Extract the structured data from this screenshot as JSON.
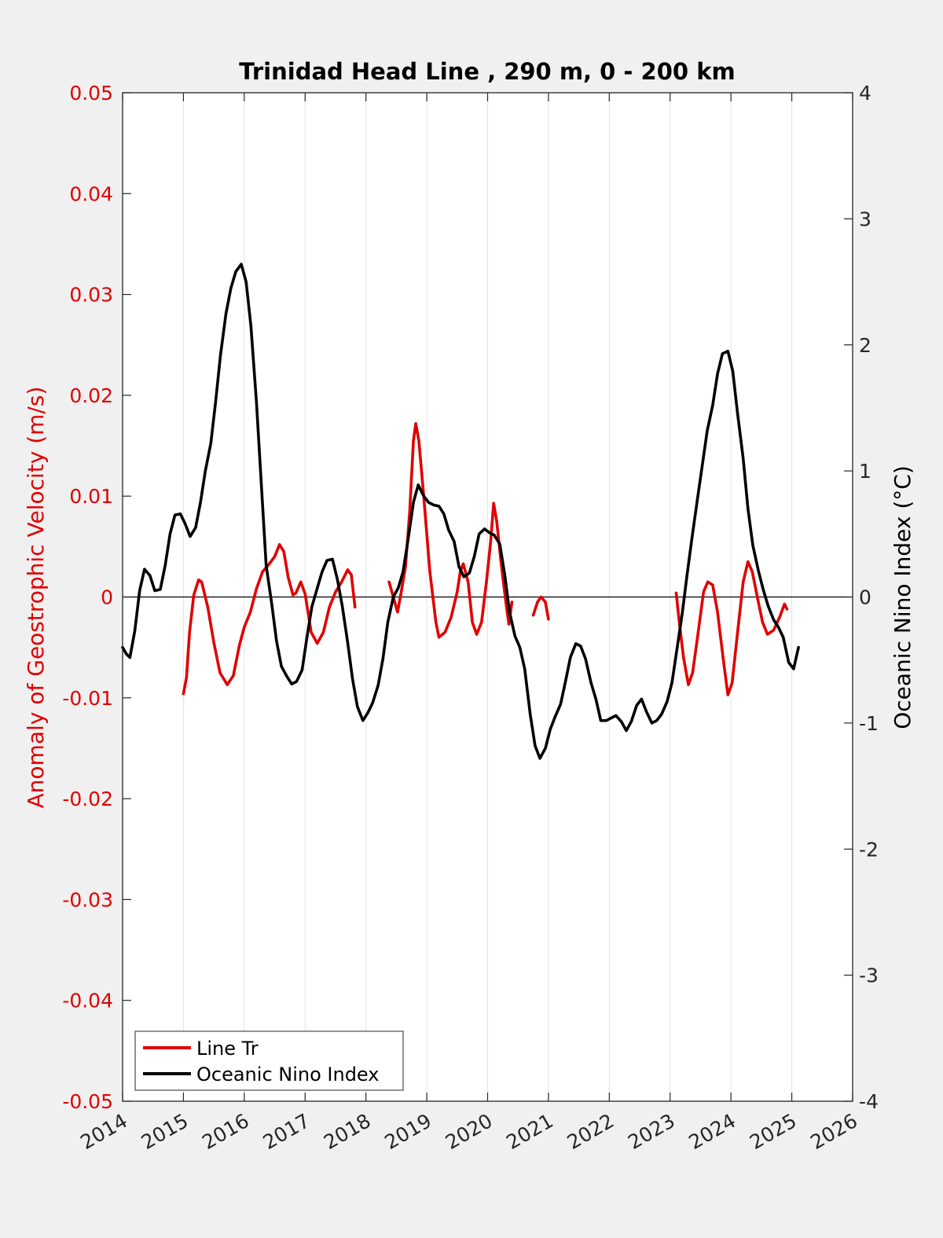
{
  "chart_data": {
    "type": "line",
    "title": "Trinidad Head Line , 290 m, 0 - 200 km",
    "ylabel_left": "Anomaly of Geostrophic Velocity (m/s)",
    "ylabel_right": "Oceanic Nino Index (°C)",
    "xlim": [
      2014,
      2026
    ],
    "ylim_left": [
      -0.05,
      0.05
    ],
    "ylim_right": [
      -4,
      4
    ],
    "x_ticks": [
      "2014",
      "2015",
      "2016",
      "2017",
      "2018",
      "2019",
      "2020",
      "2021",
      "2022",
      "2023",
      "2024",
      "2025",
      "2026"
    ],
    "y_ticks_left": [
      "0.05",
      "0.04",
      "0.03",
      "0.02",
      "0.01",
      "0",
      "-0.01",
      "-0.02",
      "-0.03",
      "-0.04",
      "-0.05"
    ],
    "y_ticks_right": [
      "4",
      "3",
      "2",
      "1",
      "0",
      "-1",
      "-2",
      "-3",
      "-4"
    ],
    "grid": "vertical",
    "legend_position": "bottom-left",
    "colors": {
      "left_axis": "#e00000",
      "line_tr": "#e00000",
      "oni": "#000000"
    },
    "series": [
      {
        "name": "Line Tr",
        "axis": "left",
        "segments": [
          [
            [
              2015.0,
              -0.0096
            ],
            [
              2015.05,
              -0.008
            ],
            [
              2015.1,
              -0.0035
            ],
            [
              2015.17,
              0.0002
            ],
            [
              2015.25,
              0.0017
            ],
            [
              2015.3,
              0.0015
            ],
            [
              2015.4,
              -0.001
            ],
            [
              2015.5,
              -0.0045
            ],
            [
              2015.6,
              -0.0075
            ],
            [
              2015.72,
              -0.0087
            ],
            [
              2015.82,
              -0.0078
            ],
            [
              2015.92,
              -0.0048
            ],
            [
              2016.0,
              -0.003
            ],
            [
              2016.1,
              -0.0015
            ],
            [
              2016.2,
              0.0008
            ],
            [
              2016.3,
              0.0025
            ],
            [
              2016.4,
              0.0032
            ],
            [
              2016.5,
              0.004
            ],
            [
              2016.58,
              0.0052
            ],
            [
              2016.65,
              0.0045
            ],
            [
              2016.72,
              0.002
            ],
            [
              2016.8,
              0.0002
            ],
            [
              2016.85,
              0.0004
            ],
            [
              2016.93,
              0.0015
            ],
            [
              2017.0,
              0.0003
            ],
            [
              2017.1,
              -0.0035
            ],
            [
              2017.2,
              -0.0046
            ],
            [
              2017.3,
              -0.0035
            ],
            [
              2017.4,
              -0.001
            ],
            [
              2017.5,
              0.0005
            ],
            [
              2017.6,
              0.0015
            ],
            [
              2017.7,
              0.0027
            ],
            [
              2017.76,
              0.0022
            ],
            [
              2017.82,
              -0.001
            ]
          ],
          [
            [
              2018.38,
              0.0015
            ],
            [
              2018.45,
              0.0
            ],
            [
              2018.52,
              -0.0015
            ],
            [
              2018.58,
              0.0005
            ],
            [
              2018.65,
              0.003
            ],
            [
              2018.72,
              0.0085
            ],
            [
              2018.78,
              0.0155
            ],
            [
              2018.82,
              0.0172
            ],
            [
              2018.87,
              0.0155
            ],
            [
              2018.95,
              0.01
            ],
            [
              2019.05,
              0.0025
            ],
            [
              2019.15,
              -0.0025
            ],
            [
              2019.2,
              -0.004
            ],
            [
              2019.3,
              -0.0035
            ],
            [
              2019.4,
              -0.002
            ],
            [
              2019.5,
              0.0005
            ],
            [
              2019.55,
              0.0025
            ],
            [
              2019.6,
              0.0033
            ],
            [
              2019.68,
              0.0015
            ],
            [
              2019.75,
              -0.0025
            ],
            [
              2019.82,
              -0.0037
            ],
            [
              2019.9,
              -0.0025
            ],
            [
              2019.98,
              0.0015
            ],
            [
              2020.05,
              0.0055
            ],
            [
              2020.1,
              0.0093
            ],
            [
              2020.15,
              0.0075
            ],
            [
              2020.22,
              0.0035
            ],
            [
              2020.3,
              -0.0005
            ],
            [
              2020.35,
              -0.0027
            ],
            [
              2020.4,
              -0.0005
            ]
          ],
          [
            [
              2020.75,
              -0.0018
            ],
            [
              2020.82,
              -0.0005
            ],
            [
              2020.88,
              0.0
            ],
            [
              2020.95,
              -0.0005
            ],
            [
              2021.0,
              -0.0022
            ]
          ],
          [
            [
              2023.1,
              0.0004
            ],
            [
              2023.15,
              -0.0025
            ],
            [
              2023.22,
              -0.006
            ],
            [
              2023.3,
              -0.0087
            ],
            [
              2023.37,
              -0.0075
            ],
            [
              2023.45,
              -0.004
            ],
            [
              2023.55,
              0.0005
            ],
            [
              2023.62,
              0.0015
            ],
            [
              2023.7,
              0.0012
            ],
            [
              2023.78,
              -0.0015
            ],
            [
              2023.88,
              -0.0065
            ],
            [
              2023.95,
              -0.0097
            ],
            [
              2024.02,
              -0.0085
            ],
            [
              2024.1,
              -0.004
            ],
            [
              2024.2,
              0.0015
            ],
            [
              2024.28,
              0.0035
            ],
            [
              2024.35,
              0.0025
            ],
            [
              2024.45,
              -0.0005
            ],
            [
              2024.52,
              -0.0025
            ],
            [
              2024.6,
              -0.0037
            ],
            [
              2024.7,
              -0.0033
            ],
            [
              2024.8,
              -0.002
            ],
            [
              2024.88,
              -0.0007
            ],
            [
              2024.92,
              -0.0012
            ]
          ]
        ]
      },
      {
        "name": "Oceanic Nino Index",
        "axis": "right",
        "segments": [
          [
            [
              2014.0,
              -0.4
            ],
            [
              2014.06,
              -0.45
            ],
            [
              2014.12,
              -0.48
            ],
            [
              2014.2,
              -0.27
            ],
            [
              2014.28,
              0.05
            ],
            [
              2014.36,
              0.22
            ],
            [
              2014.45,
              0.17
            ],
            [
              2014.53,
              0.05
            ],
            [
              2014.62,
              0.06
            ],
            [
              2014.7,
              0.25
            ],
            [
              2014.78,
              0.5
            ],
            [
              2014.86,
              0.65
            ],
            [
              2014.95,
              0.66
            ],
            [
              2015.03,
              0.58
            ],
            [
              2015.11,
              0.48
            ],
            [
              2015.2,
              0.55
            ],
            [
              2015.28,
              0.75
            ],
            [
              2015.36,
              1.0
            ],
            [
              2015.45,
              1.22
            ],
            [
              2015.53,
              1.55
            ],
            [
              2015.61,
              1.92
            ],
            [
              2015.7,
              2.25
            ],
            [
              2015.78,
              2.45
            ],
            [
              2015.86,
              2.58
            ],
            [
              2015.95,
              2.64
            ],
            [
              2016.03,
              2.5
            ],
            [
              2016.11,
              2.15
            ],
            [
              2016.2,
              1.55
            ],
            [
              2016.28,
              0.9
            ],
            [
              2016.36,
              0.25
            ],
            [
              2016.45,
              -0.05
            ],
            [
              2016.53,
              -0.35
            ],
            [
              2016.61,
              -0.55
            ],
            [
              2016.7,
              -0.63
            ],
            [
              2016.78,
              -0.69
            ],
            [
              2016.86,
              -0.67
            ],
            [
              2016.95,
              -0.58
            ],
            [
              2017.03,
              -0.32
            ],
            [
              2017.11,
              -0.08
            ],
            [
              2017.2,
              0.07
            ],
            [
              2017.28,
              0.2
            ],
            [
              2017.36,
              0.29
            ],
            [
              2017.45,
              0.3
            ],
            [
              2017.53,
              0.14
            ],
            [
              2017.61,
              -0.07
            ],
            [
              2017.7,
              -0.36
            ],
            [
              2017.78,
              -0.65
            ],
            [
              2017.86,
              -0.87
            ],
            [
              2017.95,
              -0.98
            ],
            [
              2018.03,
              -0.92
            ],
            [
              2018.11,
              -0.84
            ],
            [
              2018.2,
              -0.7
            ],
            [
              2018.28,
              -0.49
            ],
            [
              2018.36,
              -0.2
            ],
            [
              2018.45,
              0.0
            ],
            [
              2018.53,
              0.07
            ],
            [
              2018.61,
              0.2
            ],
            [
              2018.7,
              0.48
            ],
            [
              2018.78,
              0.75
            ],
            [
              2018.86,
              0.89
            ],
            [
              2018.95,
              0.8
            ],
            [
              2019.03,
              0.75
            ],
            [
              2019.11,
              0.73
            ],
            [
              2019.2,
              0.72
            ],
            [
              2019.28,
              0.66
            ],
            [
              2019.36,
              0.53
            ],
            [
              2019.45,
              0.44
            ],
            [
              2019.53,
              0.24
            ],
            [
              2019.61,
              0.16
            ],
            [
              2019.7,
              0.19
            ],
            [
              2019.78,
              0.32
            ],
            [
              2019.86,
              0.5
            ],
            [
              2019.95,
              0.54
            ],
            [
              2020.03,
              0.51
            ],
            [
              2020.11,
              0.49
            ],
            [
              2020.2,
              0.42
            ],
            [
              2020.28,
              0.18
            ],
            [
              2020.36,
              -0.12
            ],
            [
              2020.45,
              -0.31
            ],
            [
              2020.53,
              -0.4
            ],
            [
              2020.61,
              -0.57
            ],
            [
              2020.7,
              -0.93
            ],
            [
              2020.78,
              -1.18
            ],
            [
              2020.86,
              -1.28
            ],
            [
              2020.95,
              -1.2
            ],
            [
              2021.03,
              -1.05
            ],
            [
              2021.11,
              -0.95
            ],
            [
              2021.2,
              -0.85
            ],
            [
              2021.28,
              -0.67
            ],
            [
              2021.36,
              -0.48
            ],
            [
              2021.45,
              -0.37
            ],
            [
              2021.53,
              -0.39
            ],
            [
              2021.61,
              -0.49
            ],
            [
              2021.7,
              -0.68
            ],
            [
              2021.78,
              -0.81
            ],
            [
              2021.86,
              -0.98
            ],
            [
              2021.95,
              -0.98
            ],
            [
              2022.03,
              -0.96
            ],
            [
              2022.11,
              -0.94
            ],
            [
              2022.2,
              -0.99
            ],
            [
              2022.28,
              -1.06
            ],
            [
              2022.36,
              -0.99
            ],
            [
              2022.45,
              -0.86
            ],
            [
              2022.53,
              -0.81
            ],
            [
              2022.61,
              -0.91
            ],
            [
              2022.7,
              -1.0
            ],
            [
              2022.78,
              -0.98
            ],
            [
              2022.86,
              -0.93
            ],
            [
              2022.95,
              -0.83
            ],
            [
              2023.03,
              -0.68
            ],
            [
              2023.11,
              -0.42
            ],
            [
              2023.2,
              -0.13
            ],
            [
              2023.28,
              0.18
            ],
            [
              2023.36,
              0.47
            ],
            [
              2023.45,
              0.78
            ],
            [
              2023.53,
              1.05
            ],
            [
              2023.61,
              1.32
            ],
            [
              2023.7,
              1.52
            ],
            [
              2023.78,
              1.77
            ],
            [
              2023.86,
              1.93
            ],
            [
              2023.95,
              1.95
            ],
            [
              2024.03,
              1.79
            ],
            [
              2024.11,
              1.45
            ],
            [
              2024.2,
              1.1
            ],
            [
              2024.28,
              0.7
            ],
            [
              2024.36,
              0.41
            ],
            [
              2024.45,
              0.21
            ],
            [
              2024.53,
              0.06
            ],
            [
              2024.61,
              -0.07
            ],
            [
              2024.7,
              -0.18
            ],
            [
              2024.78,
              -0.24
            ],
            [
              2024.86,
              -0.32
            ],
            [
              2024.95,
              -0.52
            ],
            [
              2025.03,
              -0.57
            ],
            [
              2025.11,
              -0.4
            ]
          ]
        ]
      }
    ]
  }
}
